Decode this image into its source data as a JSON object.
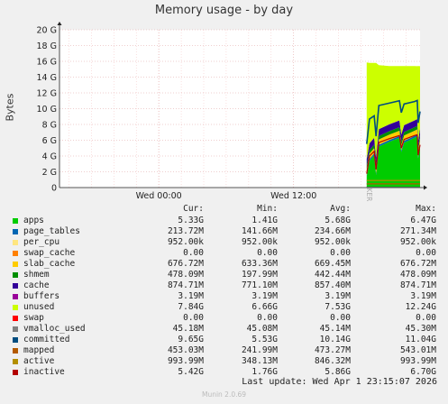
{
  "chart_data": {
    "type": "area",
    "title": "Memory usage - by day",
    "ylabel": "Bytes",
    "side_text": "RRDTOOL / TOBI OETIKER",
    "y_ticks": [
      "0",
      "2 G",
      "4 G",
      "6 G",
      "8 G",
      "10 G",
      "12 G",
      "14 G",
      "16 G",
      "18 G",
      "20 G"
    ],
    "ylim": [
      0,
      20
    ],
    "x_ticks": [
      "Wed 00:00",
      "Wed 12:00"
    ],
    "grid": true,
    "stack_order": [
      "apps",
      "page_tables",
      "per_cpu",
      "swap_cache",
      "slab_cache",
      "shmem",
      "cache",
      "buffers",
      "unused",
      "swap"
    ],
    "legend_headers": [
      "Cur:",
      "Min:",
      "Avg:",
      "Max:"
    ],
    "series": [
      {
        "name": "apps",
        "color": "#00cc00",
        "cur": "5.33G",
        "min": "1.41G",
        "avg": "5.68G",
        "max": "6.47G"
      },
      {
        "name": "page_tables",
        "color": "#0066b3",
        "cur": "213.72M",
        "min": "141.66M",
        "avg": "234.66M",
        "max": "271.34M"
      },
      {
        "name": "per_cpu",
        "color": "#ffe680",
        "cur": "952.00k",
        "min": "952.00k",
        "avg": "952.00k",
        "max": "952.00k"
      },
      {
        "name": "swap_cache",
        "color": "#ff8000",
        "cur": "0.00",
        "min": "0.00",
        "avg": "0.00",
        "max": "0.00"
      },
      {
        "name": "slab_cache",
        "color": "#ffcc00",
        "cur": "676.72M",
        "min": "633.36M",
        "avg": "669.45M",
        "max": "676.72M"
      },
      {
        "name": "shmem",
        "color": "#008f00",
        "cur": "478.09M",
        "min": "197.99M",
        "avg": "442.44M",
        "max": "478.09M"
      },
      {
        "name": "cache",
        "color": "#330099",
        "cur": "874.71M",
        "min": "771.10M",
        "avg": "857.40M",
        "max": "874.71M"
      },
      {
        "name": "buffers",
        "color": "#990099",
        "cur": "3.19M",
        "min": "3.19M",
        "avg": "3.19M",
        "max": "3.19M"
      },
      {
        "name": "unused",
        "color": "#ccff00",
        "cur": "7.84G",
        "min": "6.66G",
        "avg": "7.53G",
        "max": "12.24G"
      },
      {
        "name": "swap",
        "color": "#ff0000",
        "cur": "0.00",
        "min": "0.00",
        "avg": "0.00",
        "max": "0.00"
      },
      {
        "name": "vmalloc_used",
        "color": "#808080",
        "cur": "45.18M",
        "min": "45.08M",
        "avg": "45.14M",
        "max": "45.30M"
      },
      {
        "name": "committed",
        "color": "#004d80",
        "cur": "9.65G",
        "min": "5.53G",
        "avg": "10.14G",
        "max": "11.04G"
      },
      {
        "name": "mapped",
        "color": "#b35a00",
        "cur": "453.03M",
        "min": "241.99M",
        "avg": "473.27M",
        "max": "543.01M"
      },
      {
        "name": "active",
        "color": "#b38f00",
        "cur": "993.99M",
        "min": "348.13M",
        "avg": "846.32M",
        "max": "993.99M"
      },
      {
        "name": "inactive",
        "color": "#b30000",
        "cur": "5.42G",
        "min": "1.76G",
        "avg": "5.86G",
        "max": "6.70G"
      }
    ],
    "x_start": "Tue 15:10",
    "x_end": "Wed 23:15",
    "samples": [
      {
        "t": "Wed 18:30",
        "apps": 1.41,
        "unused": 12.24,
        "committed": 5.53,
        "inactive": 1.76
      },
      {
        "t": "Wed 18:45",
        "apps": 3.4,
        "unused": 10.2,
        "committed": 8.7,
        "inactive": 4.0
      },
      {
        "t": "Wed 19:10",
        "apps": 4.1,
        "unused": 9.5,
        "committed": 9.1,
        "inactive": 4.6
      },
      {
        "t": "Wed 19:20",
        "apps": 1.6,
        "unused": 12.0,
        "committed": 6.5,
        "inactive": 2.3
      },
      {
        "t": "Wed 19:35",
        "apps": 5.2,
        "unused": 8.1,
        "committed": 10.4,
        "inactive": 5.7
      },
      {
        "t": "Wed 20:30",
        "apps": 5.8,
        "unused": 7.4,
        "committed": 10.7,
        "inactive": 6.2
      },
      {
        "t": "Wed 21:25",
        "apps": 6.3,
        "unused": 6.9,
        "committed": 11.0,
        "inactive": 6.6
      },
      {
        "t": "Wed 21:35",
        "apps": 4.5,
        "unused": 8.7,
        "committed": 9.5,
        "inactive": 5.0
      },
      {
        "t": "Wed 21:50",
        "apps": 5.7,
        "unused": 7.5,
        "committed": 10.6,
        "inactive": 6.1
      },
      {
        "t": "Wed 22:45",
        "apps": 6.3,
        "unused": 6.9,
        "committed": 10.9,
        "inactive": 6.6
      },
      {
        "t": "Wed 23:00",
        "apps": 6.47,
        "unused": 6.7,
        "committed": 11.04,
        "inactive": 6.7
      },
      {
        "t": "Wed 23:05",
        "apps": 3.7,
        "unused": 9.5,
        "committed": 8.2,
        "inactive": 4.1
      },
      {
        "t": "Wed 23:15",
        "apps": 5.33,
        "unused": 7.84,
        "committed": 9.65,
        "inactive": 5.42
      }
    ]
  },
  "last_update": "Last update: Wed Apr  1 23:15:07 2026",
  "footer": "Munin 2.0.69"
}
